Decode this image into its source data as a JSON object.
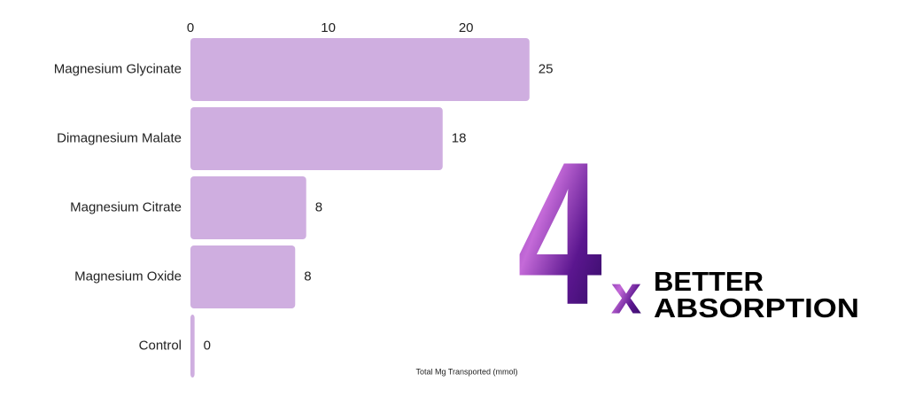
{
  "chart_data": {
    "type": "bar",
    "orientation": "horizontal",
    "categories": [
      "Magnesium Glycinate",
      "Dimagnesium Malate",
      "Magnesium Citrate",
      "Magnesium Oxide",
      "Control"
    ],
    "values": [
      24.6,
      18.3,
      8.4,
      7.6,
      0.3
    ],
    "value_labels": [
      "25",
      "18",
      "8",
      "8",
      "0"
    ],
    "color": "#cfaee0",
    "xlim": [
      0,
      25
    ],
    "xticks": [
      0,
      10,
      20
    ],
    "x_label": "Total Mg Transported (mmol)"
  },
  "badge": {
    "number": "4",
    "multiplier": "x",
    "line1": "BETTER",
    "line2": "ABSORPTION"
  }
}
